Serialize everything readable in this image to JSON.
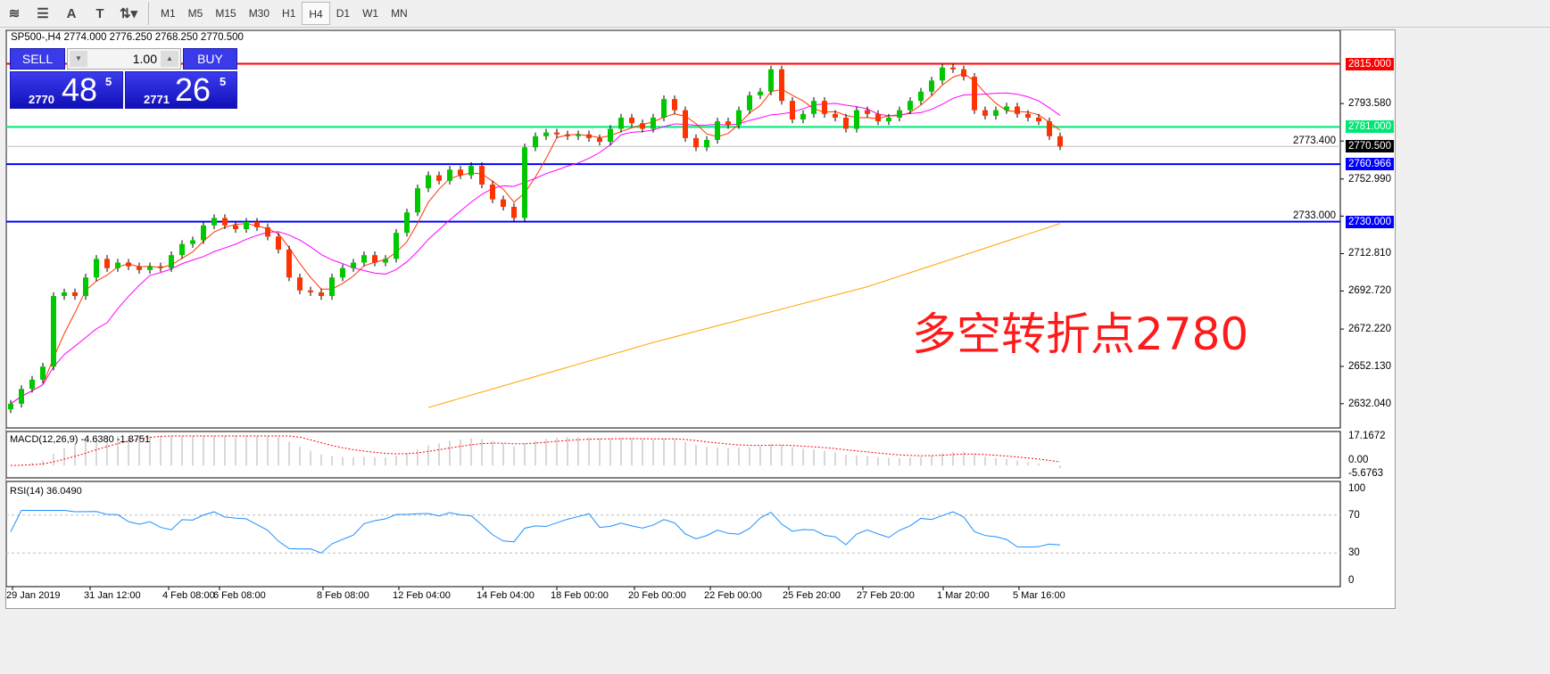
{
  "toolbar": {
    "tools": [
      {
        "icon": "elliott-wave-icon"
      },
      {
        "icon": "fibonacci-icon"
      },
      {
        "icon": "text-icon",
        "label": "A"
      },
      {
        "icon": "text-label-icon",
        "label": "T"
      },
      {
        "icon": "arrows-icon"
      }
    ],
    "timeframes": [
      "M1",
      "M5",
      "M15",
      "M30",
      "H1",
      "H4",
      "D1",
      "W1",
      "MN"
    ],
    "active": "H4"
  },
  "symbol_line": "SP500-,H4  2774.000 2776.250 2768.250 2770.500",
  "trade": {
    "sell": "SELL",
    "buy": "BUY",
    "lot": "1.00",
    "sell_prefix": "2770",
    "sell_big": "48",
    "sell_sup": "5",
    "buy_prefix": "2771",
    "buy_big": "26",
    "buy_sup": "5"
  },
  "annotation": "多空转折点2780",
  "chart_data": {
    "type": "candlestick",
    "symbol": "SP500-",
    "timeframe": "H4",
    "ylim": [
      2619,
      2833
    ],
    "price_ticks": [
      "2793.580",
      "2773.400",
      "2752.990",
      "2733.000",
      "2712.810",
      "2692.720",
      "2672.220",
      "2652.130",
      "2632.040"
    ],
    "time_labels": [
      "29 Jan 2019",
      "31 Jan 12:00",
      "4 Feb 08:00",
      "6 Feb 08:00",
      "8 Feb 08:00",
      "12 Feb 04:00",
      "14 Feb 04:00",
      "18 Feb 00:00",
      "20 Feb 00:00",
      "22 Feb 00:00",
      "25 Feb 20:00",
      "27 Feb 20:00",
      "1 Mar 20:00",
      "5 Mar 16:00"
    ],
    "closes": [
      2632,
      2640,
      2645,
      2652,
      2690,
      2692,
      2690,
      2700,
      2710,
      2705,
      2708,
      2706,
      2704,
      2706,
      2705,
      2712,
      2718,
      2720,
      2728,
      2732,
      2728,
      2726,
      2730,
      2727,
      2722,
      2715,
      2700,
      2693,
      2692,
      2690,
      2700,
      2705,
      2708,
      2712,
      2708,
      2710,
      2724,
      2735,
      2748,
      2755,
      2752,
      2758,
      2755,
      2760,
      2750,
      2742,
      2738,
      2732,
      2770,
      2776,
      2778,
      2777,
      2776,
      2777,
      2775,
      2773,
      2780,
      2786,
      2783,
      2780,
      2786,
      2796,
      2790,
      2775,
      2770,
      2774,
      2784,
      2782,
      2790,
      2798,
      2800,
      2812,
      2795,
      2785,
      2788,
      2795,
      2788,
      2786,
      2780,
      2790,
      2788,
      2784,
      2786,
      2790,
      2795,
      2800,
      2806,
      2813,
      2812,
      2808,
      2790,
      2787,
      2790,
      2792,
      2788,
      2786,
      2784,
      2776,
      2770.5
    ],
    "ma_long": [
      [
        39,
        2630
      ],
      [
        60,
        2665
      ],
      [
        80,
        2695
      ],
      [
        98,
        2729
      ]
    ],
    "hlines": [
      {
        "price": "2815.000",
        "color": "#ff0000"
      },
      {
        "price": "2781.000",
        "color": "#00e676"
      },
      {
        "price": "2770.500",
        "color": "#000000",
        "kind": "bid"
      },
      {
        "price": "2760.966",
        "color": "#0000ff"
      },
      {
        "price": "2730.000",
        "color": "#0000ff"
      }
    ],
    "colors": {
      "bull": "#00c800",
      "bear": "#ff3300",
      "ma_fast": "#ff3300",
      "ma_mid": "#ff00ff",
      "ma_long": "#ffa500",
      "rsi": "#1e90ff"
    },
    "macd": {
      "label": "MACD(12,26,9) -4.6380 -1.8751",
      "ticks": [
        "17.1672",
        "0.00",
        "-5.6763"
      ],
      "range": [
        -5.6763,
        17.1672
      ]
    },
    "rsi": {
      "label": "RSI(14) 36.0490",
      "ticks": [
        "100",
        "70",
        "30",
        "0"
      ],
      "levels": [
        70,
        30
      ]
    }
  }
}
